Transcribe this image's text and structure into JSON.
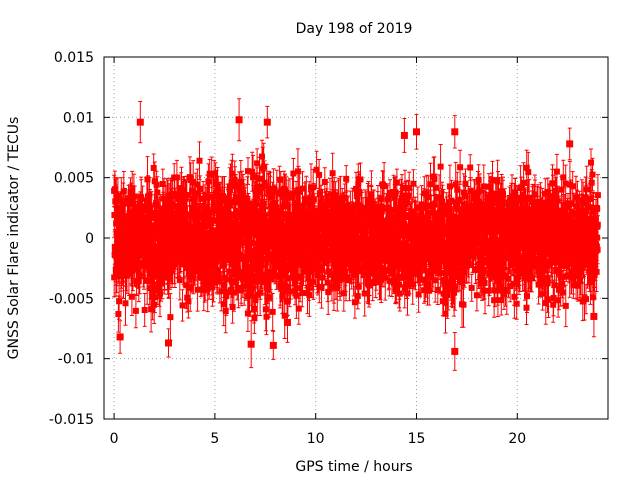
{
  "chart_data": {
    "type": "scatter",
    "title": "Day 198 of 2019",
    "xlabel": "GPS time / hours",
    "ylabel": "GNSS Solar Flare indicator / TECUs",
    "xlim": [
      -0.5,
      24.5
    ],
    "ylim": [
      -0.015,
      0.015
    ],
    "x_ticks": [
      0,
      5,
      10,
      15,
      20
    ],
    "x_tick_labels": [
      "0",
      "5",
      "10",
      "15",
      "20"
    ],
    "y_ticks": [
      -0.015,
      -0.01,
      -0.005,
      0,
      0.005,
      0.01,
      0.015
    ],
    "y_tick_labels": [
      "-0.015",
      "-0.01",
      "-0.005",
      "0",
      "0.005",
      "0.01",
      "0.015"
    ],
    "grid": true,
    "marker": "filled-square",
    "error_bars": true,
    "series": [
      {
        "name": "solar-flare-indicator",
        "color": "#ff0000",
        "x_start": 0,
        "x_end": 24,
        "n_points": 2880,
        "error_half_width_approx": 0.0015,
        "typical_range": [
          -0.006,
          0.006
        ],
        "notable_points": [
          {
            "x": 1.3,
            "y": 0.0096
          },
          {
            "x": 0.3,
            "y": -0.0082
          },
          {
            "x": 2.7,
            "y": -0.0087
          },
          {
            "x": 6.2,
            "y": 0.0098
          },
          {
            "x": 6.8,
            "y": -0.0088
          },
          {
            "x": 7.6,
            "y": 0.0096
          },
          {
            "x": 7.9,
            "y": -0.0089
          },
          {
            "x": 8.6,
            "y": -0.007
          },
          {
            "x": 14.4,
            "y": 0.0085
          },
          {
            "x": 15.0,
            "y": 0.0088
          },
          {
            "x": 16.9,
            "y": 0.0088
          },
          {
            "x": 16.9,
            "y": -0.0094
          },
          {
            "x": 22.6,
            "y": 0.0078
          },
          {
            "x": 23.8,
            "y": -0.0065
          }
        ]
      }
    ]
  }
}
